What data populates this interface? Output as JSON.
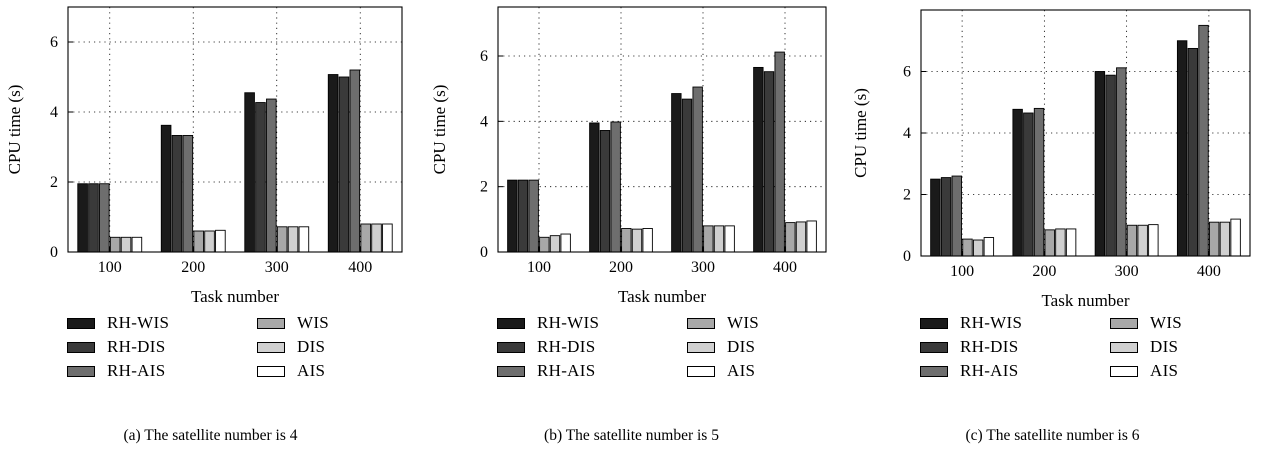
{
  "chart_data": [
    {
      "type": "bar",
      "caption": "(a)  The satellite number is 4",
      "xlabel": "Task number",
      "ylabel": "CPU time (s)",
      "categories": [
        "100",
        "200",
        "300",
        "400"
      ],
      "ylim": [
        0,
        7
      ],
      "yticks": [
        0,
        2,
        4,
        6
      ],
      "grid": true,
      "legend_position": "bottom",
      "series": [
        {
          "name": "RH-WIS",
          "color": "#1a1a1a",
          "values": [
            1.95,
            3.62,
            4.55,
            5.07
          ]
        },
        {
          "name": "RH-DIS",
          "color": "#3a3a3a",
          "values": [
            1.95,
            3.33,
            4.27,
            5.0
          ]
        },
        {
          "name": "RH-AIS",
          "color": "#6e6e6e",
          "values": [
            1.95,
            3.33,
            4.37,
            5.2
          ]
        },
        {
          "name": "WIS",
          "color": "#a8a8a8",
          "values": [
            0.42,
            0.6,
            0.72,
            0.8
          ]
        },
        {
          "name": "DIS",
          "color": "#d0d0d0",
          "values": [
            0.42,
            0.6,
            0.72,
            0.8
          ]
        },
        {
          "name": "AIS",
          "color": "#ffffff",
          "values": [
            0.42,
            0.62,
            0.72,
            0.8
          ]
        }
      ]
    },
    {
      "type": "bar",
      "caption": "(b)  The satellite number is 5",
      "xlabel": "Task number",
      "ylabel": "CPU time (s)",
      "categories": [
        "100",
        "200",
        "300",
        "400"
      ],
      "ylim": [
        0,
        7.5
      ],
      "yticks": [
        0,
        2,
        4,
        6
      ],
      "grid": true,
      "legend_position": "bottom",
      "series": [
        {
          "name": "RH-WIS",
          "color": "#1a1a1a",
          "values": [
            2.2,
            3.95,
            4.85,
            5.65
          ]
        },
        {
          "name": "RH-DIS",
          "color": "#3a3a3a",
          "values": [
            2.2,
            3.72,
            4.68,
            5.52
          ]
        },
        {
          "name": "RH-AIS",
          "color": "#6e6e6e",
          "values": [
            2.2,
            3.98,
            5.05,
            6.12
          ]
        },
        {
          "name": "WIS",
          "color": "#a8a8a8",
          "values": [
            0.45,
            0.72,
            0.8,
            0.9
          ]
        },
        {
          "name": "DIS",
          "color": "#d0d0d0",
          "values": [
            0.5,
            0.7,
            0.8,
            0.92
          ]
        },
        {
          "name": "AIS",
          "color": "#ffffff",
          "values": [
            0.55,
            0.72,
            0.8,
            0.95
          ]
        }
      ]
    },
    {
      "type": "bar",
      "caption": "(c)  The satellite number is 6",
      "xlabel": "Task number",
      "ylabel": "CPU time (s)",
      "categories": [
        "100",
        "200",
        "300",
        "400"
      ],
      "ylim": [
        0,
        8
      ],
      "yticks": [
        0,
        2,
        4,
        6
      ],
      "grid": true,
      "legend_position": "bottom",
      "series": [
        {
          "name": "RH-WIS",
          "color": "#1a1a1a",
          "values": [
            2.5,
            4.77,
            6.0,
            7.0
          ]
        },
        {
          "name": "RH-DIS",
          "color": "#3a3a3a",
          "values": [
            2.55,
            4.65,
            5.88,
            6.75
          ]
        },
        {
          "name": "RH-AIS",
          "color": "#6e6e6e",
          "values": [
            2.6,
            4.8,
            6.12,
            7.5
          ]
        },
        {
          "name": "WIS",
          "color": "#a8a8a8",
          "values": [
            0.55,
            0.85,
            1.0,
            1.1
          ]
        },
        {
          "name": "DIS",
          "color": "#d0d0d0",
          "values": [
            0.52,
            0.88,
            1.0,
            1.1
          ]
        },
        {
          "name": "AIS",
          "color": "#ffffff",
          "values": [
            0.6,
            0.88,
            1.02,
            1.2
          ]
        }
      ]
    }
  ]
}
